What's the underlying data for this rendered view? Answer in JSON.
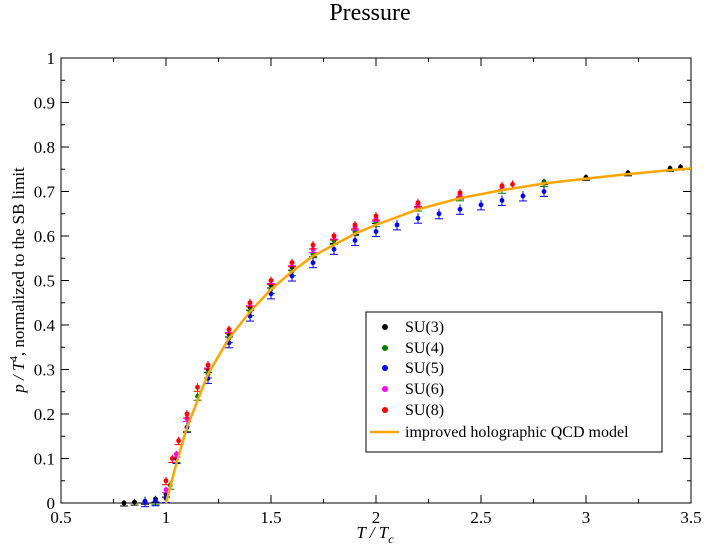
{
  "chart_data": {
    "type": "scatter",
    "title": "Pressure",
    "xlabel": {
      "main": "T / T",
      "sub": "c"
    },
    "ylabel": {
      "pre": "p / T",
      "sup": "4",
      "post": ", normalized to the SB limit"
    },
    "xlim": [
      0.5,
      3.5
    ],
    "ylim": [
      0,
      1
    ],
    "xticks": [
      0.5,
      1,
      1.5,
      2,
      2.5,
      3,
      3.5
    ],
    "xtick_labels": [
      "0.5",
      "1",
      "1.5",
      "2",
      "2.5",
      "3",
      "3.5"
    ],
    "yticks": [
      0,
      0.1,
      0.2,
      0.3,
      0.4,
      0.5,
      0.6,
      0.7,
      0.8,
      0.9,
      1
    ],
    "ytick_labels": [
      "0",
      "0.1",
      "0.2",
      "0.3",
      "0.4",
      "0.5",
      "0.6",
      "0.7",
      "0.8",
      "0.9",
      "1"
    ],
    "grid": false,
    "legend_position": "bottom-right",
    "series": [
      {
        "name": "SU(3)",
        "color": "#000000",
        "style": "points",
        "x": [
          0.8,
          0.85,
          0.9,
          0.95,
          1.0,
          1.05,
          1.1,
          1.2,
          1.3,
          1.4,
          1.5,
          1.6,
          1.7,
          1.8,
          1.9,
          2.0,
          2.2,
          2.4,
          2.6,
          2.8,
          3.0,
          3.2,
          3.4,
          3.45
        ],
        "y": [
          0.0,
          0.002,
          0.004,
          0.009,
          0.02,
          0.11,
          0.19,
          0.3,
          0.38,
          0.44,
          0.49,
          0.53,
          0.56,
          0.59,
          0.61,
          0.635,
          0.67,
          0.69,
          0.71,
          0.722,
          0.732,
          0.742,
          0.752,
          0.755
        ]
      },
      {
        "name": "SU(4)",
        "color": "#008000",
        "style": "points",
        "x": [
          0.95,
          1.0,
          1.02,
          1.05,
          1.1,
          1.15,
          1.2,
          1.3,
          1.4,
          1.5,
          1.6,
          1.7,
          1.8,
          1.9,
          2.0,
          2.2,
          2.4,
          2.6,
          2.8
        ],
        "y": [
          0.005,
          0.01,
          0.04,
          0.1,
          0.17,
          0.24,
          0.29,
          0.37,
          0.43,
          0.48,
          0.52,
          0.56,
          0.59,
          0.61,
          0.63,
          0.665,
          0.688,
          0.705,
          0.72
        ]
      },
      {
        "name": "SU(5)",
        "color": "#0000ff",
        "style": "points",
        "x": [
          0.9,
          0.95,
          1.0,
          1.05,
          1.1,
          1.2,
          1.3,
          1.4,
          1.5,
          1.6,
          1.7,
          1.8,
          1.9,
          2.0,
          2.1,
          2.2,
          2.3,
          2.4,
          2.5,
          2.6,
          2.7,
          2.8
        ],
        "y": [
          0.003,
          0.005,
          0.012,
          0.1,
          0.17,
          0.28,
          0.36,
          0.42,
          0.47,
          0.51,
          0.54,
          0.57,
          0.59,
          0.61,
          0.625,
          0.64,
          0.65,
          0.66,
          0.67,
          0.68,
          0.69,
          0.7
        ]
      },
      {
        "name": "SU(6)",
        "color": "#ff00ff",
        "style": "points",
        "x": [
          1.0,
          1.05,
          1.1,
          1.2,
          1.3,
          1.4,
          1.5,
          1.6,
          1.7,
          1.8,
          1.9,
          2.0,
          2.2,
          2.4,
          2.6
        ],
        "y": [
          0.03,
          0.11,
          0.19,
          0.31,
          0.39,
          0.45,
          0.5,
          0.54,
          0.57,
          0.6,
          0.62,
          0.64,
          0.67,
          0.693,
          0.71
        ]
      },
      {
        "name": "SU(8)",
        "color": "#ff0000",
        "style": "points",
        "x": [
          1.0,
          1.03,
          1.06,
          1.1,
          1.15,
          1.2,
          1.3,
          1.4,
          1.5,
          1.6,
          1.7,
          1.8,
          1.9,
          2.0,
          2.2,
          2.4,
          2.6,
          2.65
        ],
        "y": [
          0.05,
          0.1,
          0.14,
          0.2,
          0.26,
          0.31,
          0.39,
          0.45,
          0.5,
          0.54,
          0.58,
          0.6,
          0.625,
          0.645,
          0.675,
          0.697,
          0.713,
          0.716
        ]
      },
      {
        "name": "improved holographic QCD model",
        "color": "#ffa500",
        "style": "line",
        "x": [
          1.0,
          1.05,
          1.1,
          1.2,
          1.3,
          1.4,
          1.5,
          1.6,
          1.7,
          1.8,
          1.9,
          2.0,
          2.2,
          2.4,
          2.6,
          2.8,
          3.0,
          3.2,
          3.4,
          3.5
        ],
        "y": [
          0.0,
          0.09,
          0.17,
          0.29,
          0.37,
          0.43,
          0.48,
          0.52,
          0.555,
          0.58,
          0.605,
          0.625,
          0.66,
          0.685,
          0.703,
          0.718,
          0.729,
          0.739,
          0.748,
          0.752
        ]
      }
    ]
  }
}
